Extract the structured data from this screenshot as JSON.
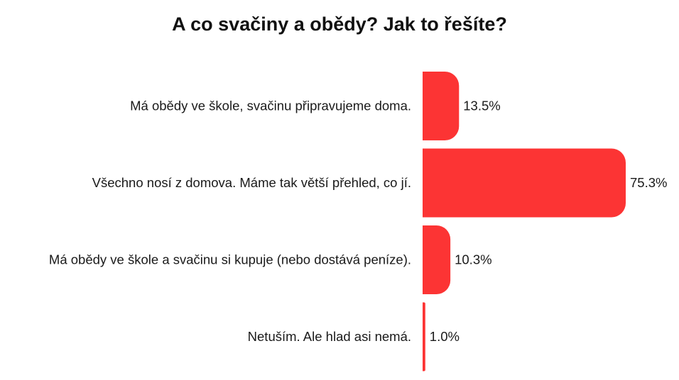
{
  "chart_data": {
    "type": "bar",
    "orientation": "horizontal",
    "title": "A co svačiny a obědy? Jak to řešíte?",
    "xlabel": "",
    "ylabel": "",
    "categories": [
      "Má obědy ve škole, svačinu připravujeme doma.",
      "Všechno nosí z domova. Máme tak větší přehled, co jí.",
      "Má obědy ve škole a svačinu si kupuje (nebo dostává peníze).",
      "Netuším. Ale hlad asi nemá."
    ],
    "values": [
      13.5,
      75.3,
      10.3,
      1.0
    ],
    "value_labels": [
      "13.5%",
      "75.3%",
      "10.3%",
      "1.0%"
    ],
    "xlim": [
      0,
      75.3
    ],
    "grid": false,
    "legend": "none",
    "colors": {
      "bar": "#fc3434"
    }
  }
}
